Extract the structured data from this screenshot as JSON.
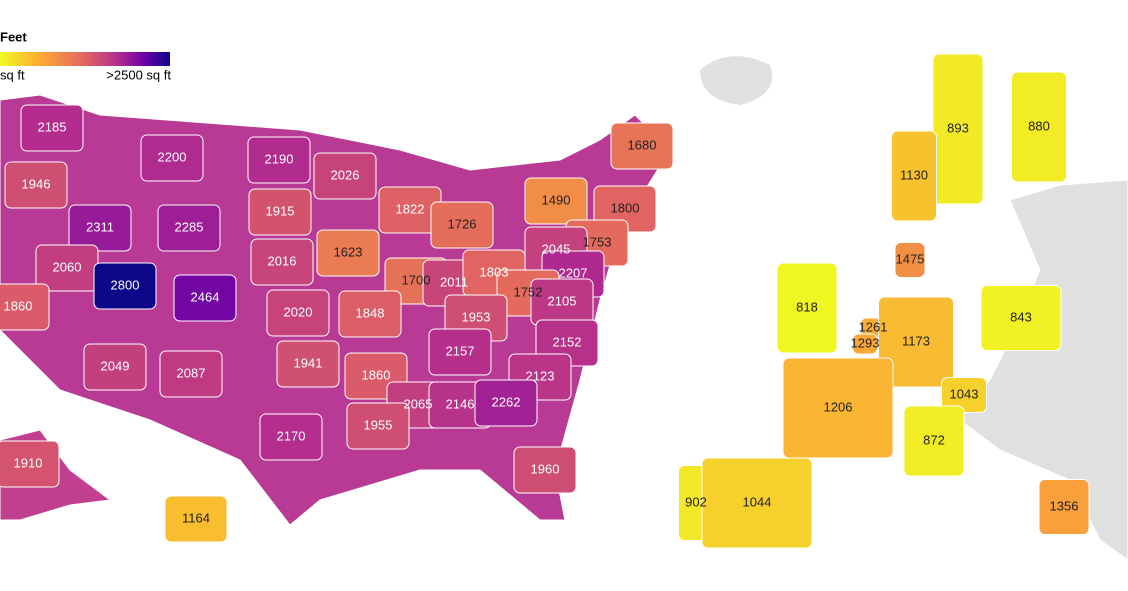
{
  "legend": {
    "title": "Feet",
    "min_label": "sq ft",
    "max_label": ">2500 sq ft"
  },
  "us": {
    "values": [
      2185,
      1946,
      2311,
      2200,
      2190,
      2026,
      1915,
      2285,
      2060,
      2800,
      2464,
      2016,
      1623,
      1822,
      1726,
      1680,
      1490,
      1800,
      1753,
      2045,
      1700,
      2011,
      1803,
      2207,
      1752,
      2105,
      1860,
      2020,
      1848,
      1953,
      2157,
      2152,
      1941,
      1860,
      2049,
      2087,
      2123,
      2065,
      2146,
      2262,
      1955,
      2170,
      1960,
      1910,
      1164
    ]
  },
  "europe": {
    "values": [
      893,
      880,
      1130,
      1475,
      818,
      843,
      1261,
      1293,
      1173,
      1043,
      1206,
      872,
      902,
      1044,
      1356
    ]
  }
}
